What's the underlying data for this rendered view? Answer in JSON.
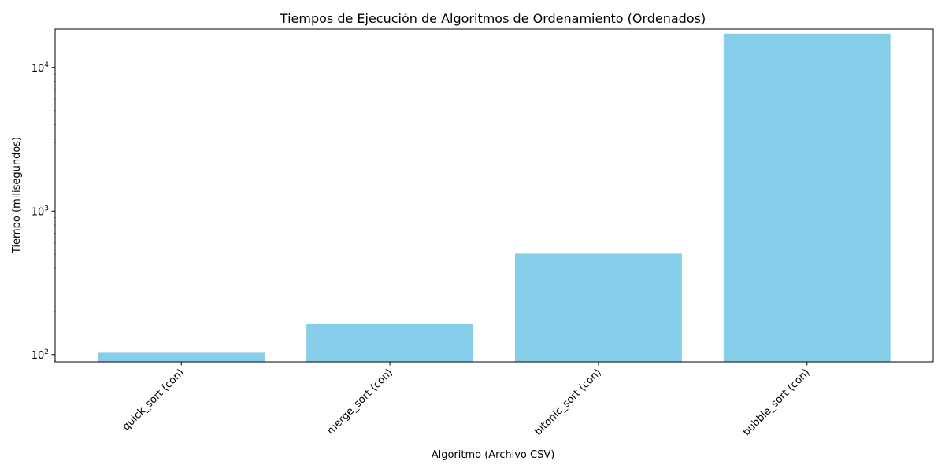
{
  "chart_data": {
    "type": "bar",
    "title": "Tiempos de Ejecución de Algoritmos de Ordenamiento (Ordenados)",
    "xlabel": "Algoritmo (Archivo CSV)",
    "ylabel": "Tiempo (milisegundos)",
    "yscale": "log",
    "ylim": [
      89,
      18500
    ],
    "yticks": [
      {
        "value": 100,
        "base": "10",
        "exp": "2"
      },
      {
        "value": 1000,
        "base": "10",
        "exp": "3"
      },
      {
        "value": 10000,
        "base": "10",
        "exp": "4"
      }
    ],
    "categories": [
      "quick_sort (con)",
      "merge_sort (con)",
      "bitonic_sort (con)",
      "bubble_sort (con)"
    ],
    "values": [
      103,
      163,
      505,
      17200
    ],
    "bar_color": "#87ceeb",
    "grid": false,
    "legend": "none"
  }
}
